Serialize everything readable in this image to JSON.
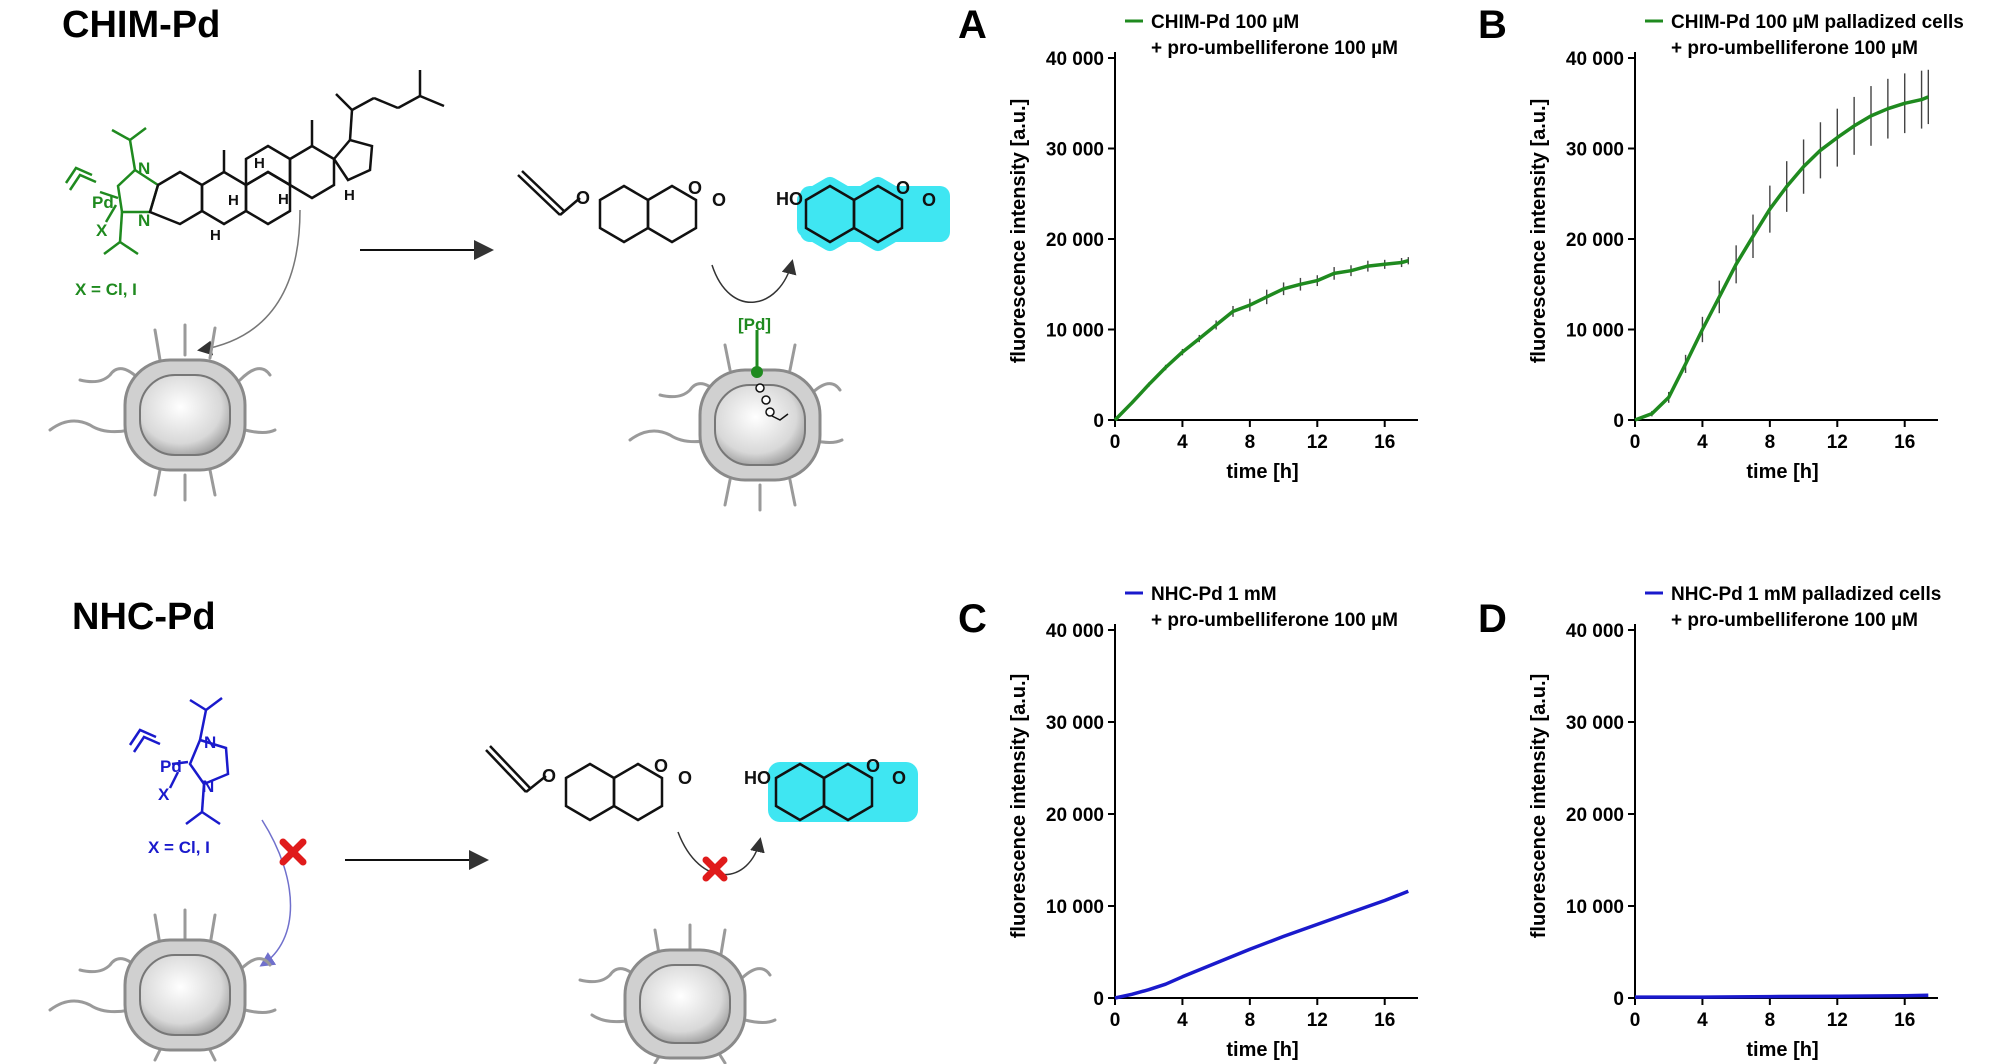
{
  "schemes": [
    {
      "title": "CHIM-Pd",
      "color": "#1f8a1f",
      "x_label": "X = Cl, I",
      "pd_label": "Pd",
      "x_atom": "X",
      "n_label": "N",
      "h_label": "H",
      "cell_pd_label": "[Pd]",
      "ho_label": "HO",
      "o_label": "O"
    },
    {
      "title": "NHC-Pd",
      "color": "#1a1acc",
      "x_label": "X = Cl, I",
      "pd_label": "Pd",
      "x_atom": "X",
      "n_label": "N",
      "ho_label": "HO",
      "o_label": "O"
    }
  ],
  "colors": {
    "green": "#1f8a1f",
    "blue": "#1a1acc",
    "cyan_glow": "#3fe6f2",
    "cross": "#e01b1b"
  },
  "chart_data": [
    {
      "panel": "A",
      "type": "line",
      "legend": [
        "CHIM-Pd 100 µM",
        "+ pro-umbelliferone 100 µM"
      ],
      "xlabel": "time [h]",
      "ylabel": "fluorescence intensity [a.u.]",
      "xlim": [
        0,
        17.5
      ],
      "ylim": [
        0,
        40000
      ],
      "xticks": [
        0,
        4,
        8,
        12,
        16
      ],
      "yticks": [
        0,
        10000,
        20000,
        30000,
        40000
      ],
      "ytick_labels": [
        "0",
        "10 000",
        "20 000",
        "30 000",
        "40 000"
      ],
      "color": "#1f8a1f",
      "error_bars": true,
      "x": [
        0,
        1,
        2,
        3,
        4,
        5,
        6,
        7,
        8,
        9,
        10,
        11,
        12,
        13,
        14,
        15,
        16,
        17,
        17.4
      ],
      "y": [
        0,
        1900,
        3900,
        5800,
        7500,
        9000,
        10500,
        12000,
        12700,
        13600,
        14500,
        15000,
        15400,
        16200,
        16500,
        17000,
        17200,
        17400,
        17600
      ],
      "err": [
        0,
        200,
        250,
        300,
        350,
        400,
        500,
        600,
        700,
        800,
        700,
        700,
        600,
        700,
        600,
        600,
        500,
        500,
        400
      ]
    },
    {
      "panel": "B",
      "type": "line",
      "legend": [
        "CHIM-Pd 100 µM palladized cells",
        "+ pro-umbelliferone 100 µM"
      ],
      "xlabel": "time [h]",
      "ylabel": "fluorescence intensity [a.u.]",
      "xlim": [
        0,
        17.5
      ],
      "ylim": [
        0,
        40000
      ],
      "xticks": [
        0,
        4,
        8,
        12,
        16
      ],
      "yticks": [
        0,
        10000,
        20000,
        30000,
        40000
      ],
      "ytick_labels": [
        "0",
        "10 000",
        "20 000",
        "30 000",
        "40 000"
      ],
      "color": "#1f8a1f",
      "error_bars": true,
      "x": [
        0,
        1,
        2,
        3,
        4,
        5,
        6,
        7,
        8,
        9,
        10,
        11,
        12,
        13,
        14,
        15,
        16,
        17,
        17.4
      ],
      "y": [
        0,
        700,
        2500,
        6200,
        10000,
        13600,
        17200,
        20300,
        23300,
        25800,
        28000,
        29800,
        31200,
        32500,
        33600,
        34400,
        35000,
        35400,
        35700
      ],
      "err": [
        0,
        300,
        600,
        1000,
        1400,
        1800,
        2100,
        2400,
        2600,
        2800,
        3000,
        3100,
        3200,
        3200,
        3300,
        3300,
        3300,
        3200,
        3000
      ]
    },
    {
      "panel": "C",
      "type": "line",
      "legend": [
        "NHC-Pd 1 mM",
        "+ pro-umbelliferone 100 µM"
      ],
      "xlabel": "time [h]",
      "ylabel": "fluorescence intensity [a.u.]",
      "xlim": [
        0,
        17.5
      ],
      "ylim": [
        0,
        40000
      ],
      "xticks": [
        0,
        4,
        8,
        12,
        16
      ],
      "yticks": [
        0,
        10000,
        20000,
        30000,
        40000
      ],
      "ytick_labels": [
        "0",
        "10 000",
        "20 000",
        "30 000",
        "40 000"
      ],
      "color": "#1a1acc",
      "error_bars": false,
      "x": [
        0,
        1,
        2,
        3,
        4,
        6,
        8,
        10,
        12,
        14,
        16,
        17.4
      ],
      "y": [
        0,
        400,
        900,
        1500,
        2300,
        3800,
        5300,
        6700,
        8000,
        9300,
        10600,
        11600
      ],
      "err": []
    },
    {
      "panel": "D",
      "type": "line",
      "legend": [
        "NHC-Pd 1 mM palladized cells",
        "+ pro-umbelliferone 100 µM"
      ],
      "xlabel": "time [h]",
      "ylabel": "fluorescence intensity [a.u.]",
      "xlim": [
        0,
        17.5
      ],
      "ylim": [
        0,
        40000
      ],
      "xticks": [
        0,
        4,
        8,
        12,
        16
      ],
      "yticks": [
        0,
        10000,
        20000,
        30000,
        40000
      ],
      "ytick_labels": [
        "0",
        "10 000",
        "20 000",
        "30 000",
        "40 000"
      ],
      "color": "#1a1acc",
      "error_bars": false,
      "x": [
        0,
        4,
        8,
        12,
        16,
        17.4
      ],
      "y": [
        100,
        100,
        150,
        200,
        250,
        300
      ],
      "err": []
    }
  ]
}
